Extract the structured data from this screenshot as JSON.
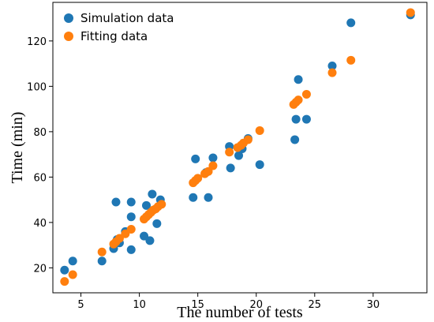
{
  "chart_data": {
    "type": "scatter",
    "title": "",
    "xlabel": "The number of tests",
    "ylabel": "Time (min)",
    "xlim": [
      2.6,
      34.6
    ],
    "ylim": [
      9,
      137
    ],
    "xticks": [
      5,
      10,
      15,
      20,
      25,
      30
    ],
    "yticks": [
      20,
      40,
      60,
      80,
      100,
      120
    ],
    "grid": false,
    "legend_position": "top-left",
    "series": [
      {
        "name": "Simulation data",
        "color": "#1f77b4",
        "points": [
          [
            3.6,
            19
          ],
          [
            4.3,
            23
          ],
          [
            6.8,
            23
          ],
          [
            7.8,
            28.5
          ],
          [
            8.0,
            49
          ],
          [
            8.1,
            32.5
          ],
          [
            8.3,
            31
          ],
          [
            8.8,
            36
          ],
          [
            9.3,
            28
          ],
          [
            9.3,
            42.5
          ],
          [
            9.3,
            49
          ],
          [
            10.4,
            34
          ],
          [
            10.6,
            47.5
          ],
          [
            10.9,
            32
          ],
          [
            11.1,
            52.5
          ],
          [
            11.5,
            39.5
          ],
          [
            11.8,
            50
          ],
          [
            14.6,
            51
          ],
          [
            14.8,
            68
          ],
          [
            15.7,
            62
          ],
          [
            15.9,
            51
          ],
          [
            16.3,
            68.5
          ],
          [
            17.7,
            73.5
          ],
          [
            17.8,
            64
          ],
          [
            18.5,
            69.5
          ],
          [
            18.8,
            72.5
          ],
          [
            19.3,
            77
          ],
          [
            20.3,
            65.5
          ],
          [
            23.3,
            76.5
          ],
          [
            23.4,
            85.5
          ],
          [
            23.6,
            103
          ],
          [
            24.3,
            85.5
          ],
          [
            26.5,
            109
          ],
          [
            28.1,
            128
          ],
          [
            33.2,
            131.5
          ]
        ]
      },
      {
        "name": "Fitting data",
        "color": "#ff7f0e",
        "points": [
          [
            3.6,
            14
          ],
          [
            4.3,
            17
          ],
          [
            6.8,
            27
          ],
          [
            7.8,
            30.5
          ],
          [
            8.0,
            31.5
          ],
          [
            8.3,
            33
          ],
          [
            8.8,
            35
          ],
          [
            9.3,
            37
          ],
          [
            10.4,
            41.5
          ],
          [
            10.6,
            42.5
          ],
          [
            10.8,
            43.5
          ],
          [
            11.0,
            44.5
          ],
          [
            11.2,
            45.5
          ],
          [
            11.4,
            46
          ],
          [
            11.6,
            47
          ],
          [
            11.9,
            48
          ],
          [
            14.6,
            57.5
          ],
          [
            14.8,
            58.5
          ],
          [
            15.0,
            59.5
          ],
          [
            15.6,
            61.5
          ],
          [
            15.9,
            62.5
          ],
          [
            16.3,
            65
          ],
          [
            17.7,
            71
          ],
          [
            18.4,
            73
          ],
          [
            18.7,
            74
          ],
          [
            18.9,
            75
          ],
          [
            19.3,
            76.5
          ],
          [
            20.3,
            80.5
          ],
          [
            23.2,
            92
          ],
          [
            23.4,
            93
          ],
          [
            23.6,
            94
          ],
          [
            24.3,
            96.5
          ],
          [
            26.5,
            106
          ],
          [
            28.1,
            111.5
          ],
          [
            33.2,
            132.5
          ]
        ]
      }
    ]
  }
}
